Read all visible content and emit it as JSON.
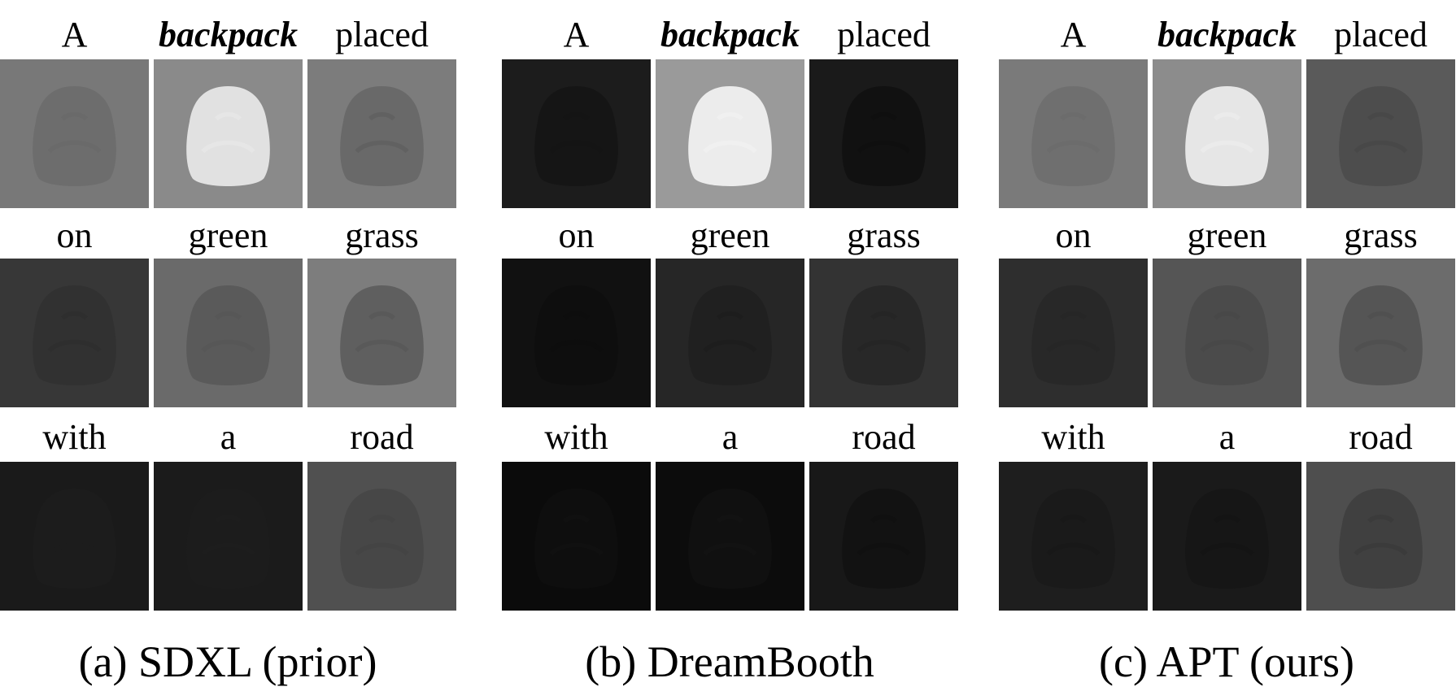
{
  "panels": [
    {
      "caption": "(a) SDXL (prior)",
      "cells": [
        {
          "word": "A",
          "bg": "#787878",
          "blob": "#6a6a6a",
          "blob_opacity": 0.75
        },
        {
          "word": "backpack",
          "bg": "#8a8a8a",
          "blob": "#e6e6e6",
          "blob_opacity": 0.95
        },
        {
          "word": "placed",
          "bg": "#7c7c7c",
          "blob": "#5e5e5e",
          "blob_opacity": 0.6
        },
        {
          "word": "on",
          "bg": "#373737",
          "blob": "#2d2d2d",
          "blob_opacity": 0.6
        },
        {
          "word": "green",
          "bg": "#6a6a6a",
          "blob": "#565656",
          "blob_opacity": 0.8
        },
        {
          "word": "grass",
          "bg": "#7d7d7d",
          "blob": "#595959",
          "blob_opacity": 0.85
        },
        {
          "word": "with",
          "bg": "#1a1a1a",
          "blob": "#1d1d1d",
          "blob_opacity": 0.5
        },
        {
          "word": "a",
          "bg": "#1b1b1b",
          "blob": "#1e1e1e",
          "blob_opacity": 0.5
        },
        {
          "word": "road",
          "bg": "#505050",
          "blob": "#434343",
          "blob_opacity": 0.7
        }
      ]
    },
    {
      "caption": "(b) DreamBooth",
      "cells": [
        {
          "word": "A",
          "bg": "#1c1c1c",
          "blob": "#141414",
          "blob_opacity": 0.8
        },
        {
          "word": "backpack",
          "bg": "#9a9a9a",
          "blob": "#f0f0f0",
          "blob_opacity": 0.95
        },
        {
          "word": "placed",
          "bg": "#1a1a1a",
          "blob": "#0f0f0f",
          "blob_opacity": 0.8
        },
        {
          "word": "on",
          "bg": "#111111",
          "blob": "#0d0d0d",
          "blob_opacity": 0.6
        },
        {
          "word": "green",
          "bg": "#262626",
          "blob": "#1c1c1c",
          "blob_opacity": 0.6
        },
        {
          "word": "grass",
          "bg": "#333333",
          "blob": "#242424",
          "blob_opacity": 0.7
        },
        {
          "word": "with",
          "bg": "#0b0b0b",
          "blob": "#111111",
          "blob_opacity": 0.6
        },
        {
          "word": "a",
          "bg": "#0c0c0c",
          "blob": "#141414",
          "blob_opacity": 0.6
        },
        {
          "word": "road",
          "bg": "#181818",
          "blob": "#101010",
          "blob_opacity": 0.7
        }
      ]
    },
    {
      "caption": "(c) APT (ours)",
      "cells": [
        {
          "word": "A",
          "bg": "#7a7a7a",
          "blob": "#6c6c6c",
          "blob_opacity": 0.75
        },
        {
          "word": "backpack",
          "bg": "#8c8c8c",
          "blob": "#ebebeb",
          "blob_opacity": 0.95
        },
        {
          "word": "placed",
          "bg": "#5a5a5a",
          "blob": "#474747",
          "blob_opacity": 0.7
        },
        {
          "word": "on",
          "bg": "#2e2e2e",
          "blob": "#252525",
          "blob_opacity": 0.6
        },
        {
          "word": "green",
          "bg": "#555555",
          "blob": "#474747",
          "blob_opacity": 0.7
        },
        {
          "word": "grass",
          "bg": "#6c6c6c",
          "blob": "#505050",
          "blob_opacity": 0.8
        },
        {
          "word": "with",
          "bg": "#1e1e1e",
          "blob": "#181818",
          "blob_opacity": 0.6
        },
        {
          "word": "a",
          "bg": "#1a1a1a",
          "blob": "#141414",
          "blob_opacity": 0.6
        },
        {
          "word": "road",
          "bg": "#4e4e4e",
          "blob": "#3a3a3a",
          "blob_opacity": 0.7
        }
      ]
    }
  ]
}
